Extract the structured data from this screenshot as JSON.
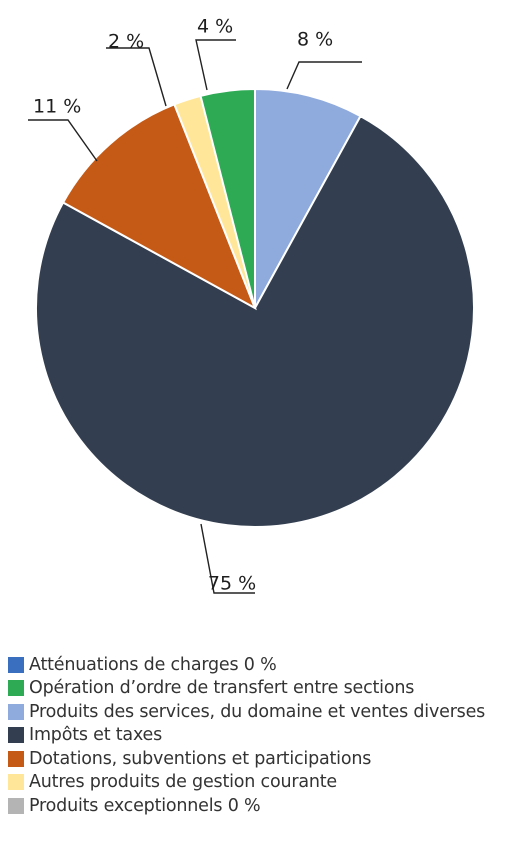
{
  "chart_data": {
    "type": "pie",
    "title": "",
    "slices": [
      {
        "name": "Atténuations de charges 0 %",
        "value": 0,
        "label": "",
        "color": "#3a6fbf"
      },
      {
        "name": "Opération d’ordre de transfert entre sections",
        "value": 4,
        "label": "4 %",
        "color": "#2eaa55"
      },
      {
        "name": "Produits des services, du domaine et ventes diverses",
        "value": 8,
        "label": "8 %",
        "color": "#8faadc"
      },
      {
        "name": "Impôts et taxes",
        "value": 75,
        "label": "75 %",
        "color": "#333f50"
      },
      {
        "name": "Dotations, subventions et participations",
        "value": 11,
        "label": "11 %",
        "color": "#c55a16"
      },
      {
        "name": "Autres produits de gestion courante",
        "value": 2,
        "label": "2 %",
        "color": "#ffe699"
      },
      {
        "name": "Produits exceptionnels 0 %",
        "value": 0,
        "label": "",
        "color": "#b4b4b4"
      }
    ],
    "legend": {
      "position": "bottom",
      "entries": [
        "Atténuations de charges 0 %",
        "Opération d’ordre de transfert entre sections",
        "Produits des services, du domaine et ventes diverses",
        "Impôts et taxes",
        "Dotations, subventions et participations",
        "Autres produits de gestion courante",
        "Produits exceptionnels 0 %"
      ]
    }
  }
}
